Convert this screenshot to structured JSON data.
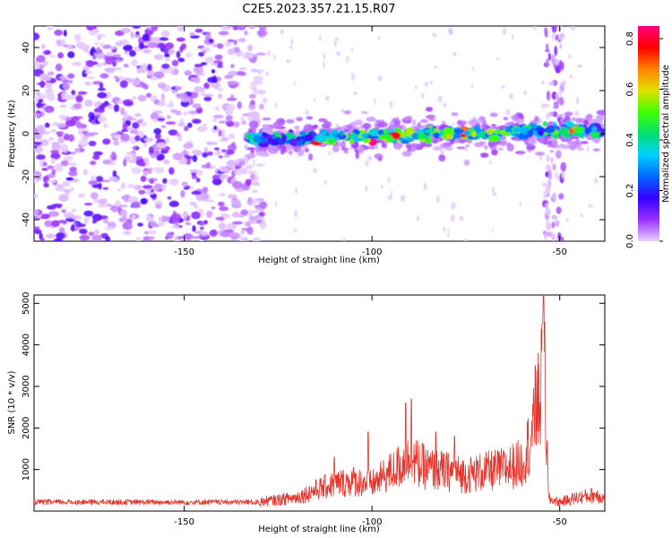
{
  "title": "C2E5.2023.357.21.15.R07",
  "chart_data": [
    {
      "type": "heatmap",
      "xlabel": "Height of straight line (km)",
      "ylabel": "Frequency (Hz)",
      "xlim": [
        -190,
        -38
      ],
      "ylim": [
        -50,
        50
      ],
      "xticks": [
        -150,
        -100,
        -50
      ],
      "yticks": [
        -40,
        -20,
        0,
        20,
        40
      ],
      "colorbar": {
        "label": "Normalized spectral amplitude",
        "range": [
          0,
          0.85
        ],
        "ticks": [
          0.0,
          0.2,
          0.4,
          0.6,
          0.8
        ],
        "colors": [
          "#e8d0ff",
          "#9b30ff",
          "#3300ff",
          "#0066ff",
          "#00d0ff",
          "#00e070",
          "#40ff00",
          "#e0e000",
          "#ff8000",
          "#ff0000",
          "#ff0080"
        ]
      },
      "features": {
        "noise_band_x": [
          -190,
          -133
        ],
        "signal_band_x": [
          -133,
          -38
        ],
        "signal_center_hz_start": -3,
        "signal_center_hz_end": 2,
        "vertical_streak_x": [
          -54,
          -49
        ]
      }
    },
    {
      "type": "line",
      "xlabel": "Height of straight line (km)",
      "ylabel": "SNR (10 * v/v)",
      "xlim": [
        -190,
        -38
      ],
      "ylim": [
        0,
        5200
      ],
      "xticks": [
        -150,
        -100,
        -50
      ],
      "yticks": [
        1000,
        2000,
        3000,
        4000,
        5000
      ],
      "color": "#e8322a",
      "envelope": {
        "x": [
          -190,
          -150,
          -130,
          -120,
          -115,
          -110,
          -105,
          -100,
          -95,
          -90,
          -85,
          -80,
          -75,
          -70,
          -65,
          -60,
          -57,
          -55,
          -54,
          -53,
          -50,
          -45,
          -40,
          -38
        ],
        "y": [
          250,
          250,
          300,
          450,
          700,
          900,
          1000,
          900,
          1300,
          1700,
          1400,
          1300,
          1200,
          1300,
          1400,
          1600,
          2700,
          4000,
          4500,
          400,
          300,
          450,
          550,
          400
        ]
      },
      "peaks": [
        [
          -54.3,
          5200
        ],
        [
          -54.6,
          4500
        ],
        [
          -56.5,
          3500
        ],
        [
          -91,
          2600
        ],
        [
          -89.5,
          2700
        ],
        [
          -101,
          1900
        ],
        [
          -110,
          1300
        ],
        [
          -83,
          1900
        ],
        [
          -78,
          1800
        ]
      ]
    }
  ]
}
